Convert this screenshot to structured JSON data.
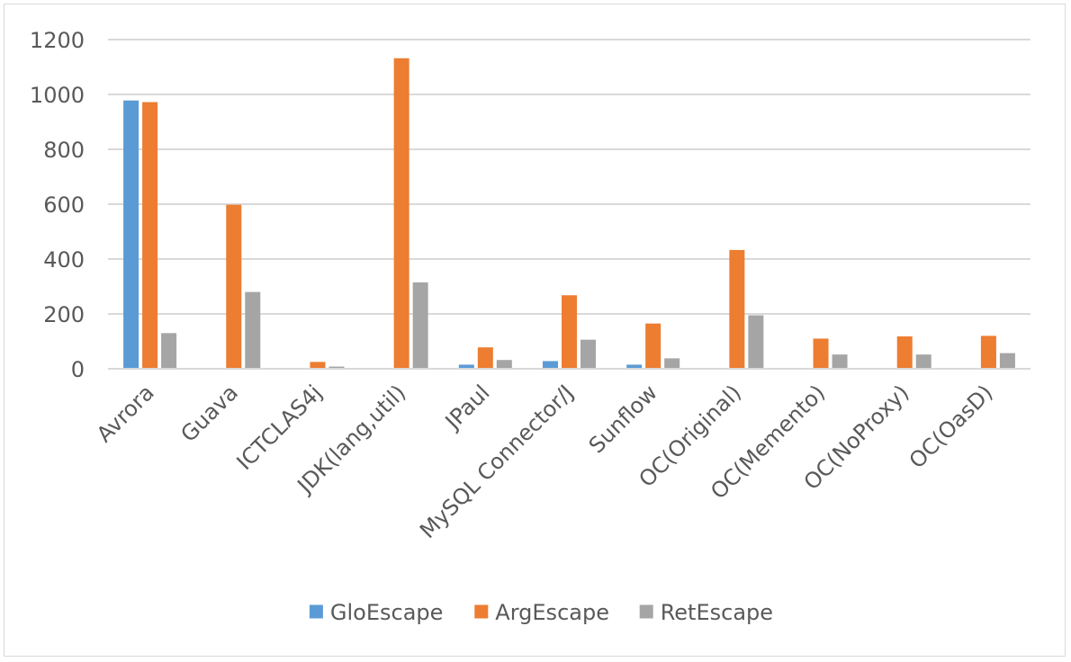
{
  "chart_data": {
    "type": "bar",
    "categories": [
      "Avrora",
      "Guava",
      "ICTCLAS4j",
      "JDK(lang,util)",
      "JPaul",
      "MySQL Connector/J",
      "Sunflow",
      "OC(Original)",
      "OC(Memento)",
      "OC(NoProxy)",
      "OC(OasD)"
    ],
    "series": [
      {
        "name": "GloEscape",
        "color": "#5b9bd5",
        "values": [
          978,
          0,
          0,
          0,
          15,
          28,
          15,
          0,
          0,
          0,
          0
        ]
      },
      {
        "name": "ArgEscape",
        "color": "#ed7d31",
        "values": [
          972,
          598,
          25,
          1132,
          78,
          268,
          165,
          433,
          110,
          118,
          120
        ]
      },
      {
        "name": "RetEscape",
        "color": "#a5a5a5",
        "values": [
          130,
          280,
          8,
          315,
          32,
          106,
          38,
          195,
          52,
          52,
          57
        ]
      }
    ],
    "yticks": [
      "0",
      "200",
      "400",
      "600",
      "800",
      "1000",
      "1200"
    ],
    "ylim": [
      0,
      1200
    ],
    "grid": true,
    "legend_position": "bottom"
  }
}
